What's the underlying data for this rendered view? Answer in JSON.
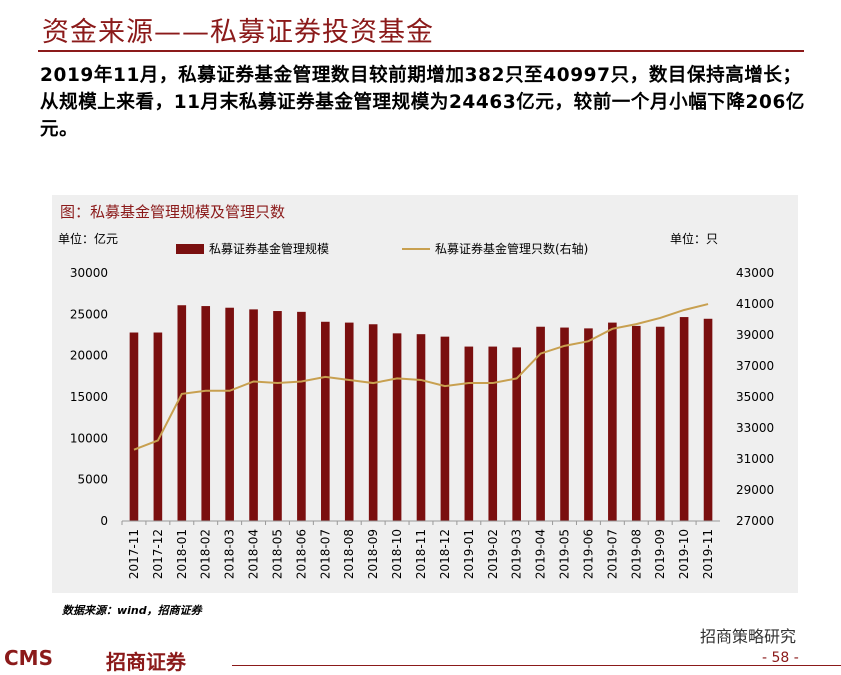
{
  "page": {
    "title": "资金来源——私募证券投资基金",
    "paragraph": "2019年11月，私募证券基金管理数目较前期增加382只至40997只，数目保持高增长；从规模上来看，11月末私募证券基金管理规模为24463亿元，较前一个月小幅下降206亿元。",
    "source": "数据来源：wind，招商证券",
    "brand": "招商策略研究",
    "page_number": "- 58 -",
    "logo_cms": "CMS",
    "logo_cn": "招商证券"
  },
  "colors": {
    "accent": "#8b1a1a",
    "bar": "#7a0f0f",
    "line": "#c8a050",
    "chart_bg": "#efefef"
  },
  "chart_data": {
    "type": "bar",
    "title": "图：私募基金管理规模及管理只数",
    "left_unit": "单位：亿元",
    "right_unit": "单位：只",
    "categories": [
      "2017-11",
      "2017-12",
      "2018-01",
      "2018-02",
      "2018-03",
      "2018-04",
      "2018-05",
      "2018-06",
      "2018-07",
      "2018-08",
      "2018-09",
      "2018-10",
      "2018-11",
      "2018-12",
      "2019-01",
      "2019-02",
      "2019-03",
      "2019-04",
      "2019-05",
      "2019-06",
      "2019-07",
      "2019-08",
      "2019-09",
      "2019-10",
      "2019-11"
    ],
    "series": [
      {
        "name": "私募证券基金管理规模",
        "type": "bar",
        "axis": "left",
        "values": [
          22800,
          22800,
          26100,
          26000,
          25800,
          25600,
          25400,
          25300,
          24100,
          24000,
          23800,
          22700,
          22600,
          22300,
          21100,
          21100,
          21000,
          23500,
          23400,
          23300,
          24000,
          23600,
          23500,
          24669,
          24463
        ]
      },
      {
        "name": "私募证券基金管理只数(右轴)",
        "type": "line",
        "axis": "right",
        "values": [
          31600,
          32200,
          35200,
          35400,
          35400,
          36000,
          35900,
          36000,
          36300,
          36100,
          35900,
          36200,
          36100,
          35700,
          35900,
          35900,
          36200,
          37800,
          38300,
          38600,
          39400,
          39700,
          40100,
          40615,
          40997
        ]
      }
    ],
    "ylim_left": [
      0,
      30000
    ],
    "yticks_left": [
      "30000",
      "25000",
      "20000",
      "15000",
      "10000",
      "5000",
      "0"
    ],
    "ylim_right": [
      27000,
      43000
    ],
    "yticks_right": [
      "43000",
      "41000",
      "39000",
      "37000",
      "35000",
      "33000",
      "31000",
      "29000",
      "27000"
    ],
    "grid": false,
    "legend": "top"
  }
}
